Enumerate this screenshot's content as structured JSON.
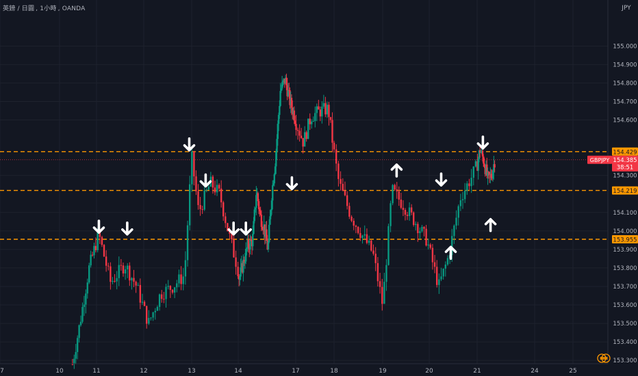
{
  "header": {
    "symbol_name": "英鎊 / 日圓",
    "interval": "1小時",
    "broker": "OANDA"
  },
  "chart_data": {
    "type": "candlestick",
    "symbol": "GBPJPY",
    "currency": "JPY",
    "y_ticks": [
      "155.000",
      "154.900",
      "154.800",
      "154.700",
      "154.600",
      "154.429",
      "154.385",
      "154.300",
      "154.219",
      "154.100",
      "154.000",
      "153.955",
      "153.900",
      "153.800",
      "153.700",
      "153.600",
      "153.500",
      "153.400",
      "153.300"
    ],
    "ylim": [
      153.26,
      155.04
    ],
    "x_ticks": [
      {
        "label": "7",
        "t": 7.0
      },
      {
        "label": "10",
        "t": 10.0
      },
      {
        "label": "11",
        "t": 11.0
      },
      {
        "label": "12",
        "t": 12.0
      },
      {
        "label": "13",
        "t": 13.0
      },
      {
        "label": "14",
        "t": 14.0
      },
      {
        "label": "17",
        "t": 17.0
      },
      {
        "label": "18",
        "t": 18.0
      },
      {
        "label": "19",
        "t": 19.0
      },
      {
        "label": "20",
        "t": 20.0
      },
      {
        "label": "21",
        "t": 21.0
      },
      {
        "label": "24",
        "t": 24.0
      },
      {
        "label": "25",
        "t": 25.0
      }
    ],
    "horizontal_levels": [
      {
        "value": 154.429,
        "label": "154.429",
        "color": "#ff9800"
      },
      {
        "value": 154.219,
        "label": "154.219",
        "color": "#ff9800"
      },
      {
        "value": 153.955,
        "label": "153.955",
        "color": "#ff9800"
      }
    ],
    "current_price": {
      "value": 154.385,
      "symbol_label": "GBPJPY",
      "price_label": "154.385",
      "countdown": "38:51",
      "color": "#f23645"
    },
    "arrows": [
      {
        "dir": "down",
        "t": 11.05,
        "price": 154.025
      },
      {
        "dir": "down",
        "t": 11.65,
        "price": 154.015
      },
      {
        "dir": "down",
        "t": 12.95,
        "price": 154.47
      },
      {
        "dir": "down",
        "t": 13.3,
        "price": 154.275
      },
      {
        "dir": "down",
        "t": 13.9,
        "price": 154.015
      },
      {
        "dir": "down",
        "t": 14.4,
        "price": 154.015
      },
      {
        "dir": "down",
        "t": 16.8,
        "price": 154.26
      },
      {
        "dir": "up",
        "t": 19.3,
        "price": 154.325
      },
      {
        "dir": "down",
        "t": 20.25,
        "price": 154.28
      },
      {
        "dir": "up",
        "t": 20.45,
        "price": 153.88
      },
      {
        "dir": "down",
        "t": 21.3,
        "price": 154.48
      },
      {
        "dir": "up",
        "t": 21.7,
        "price": 154.03
      }
    ],
    "path_anchors": [
      [
        10.35,
        153.28
      ],
      [
        10.55,
        153.5
      ],
      [
        10.8,
        153.8
      ],
      [
        11.05,
        153.98
      ],
      [
        11.3,
        153.72
      ],
      [
        11.6,
        153.82
      ],
      [
        11.85,
        153.7
      ],
      [
        12.1,
        153.5
      ],
      [
        12.35,
        153.66
      ],
      [
        12.6,
        153.7
      ],
      [
        12.85,
        153.76
      ],
      [
        13.0,
        154.4
      ],
      [
        13.15,
        154.1
      ],
      [
        13.4,
        154.26
      ],
      [
        13.6,
        154.2
      ],
      [
        13.8,
        153.98
      ],
      [
        14.05,
        153.74
      ],
      [
        14.25,
        153.82
      ],
      [
        14.5,
        153.92
      ],
      [
        14.75,
        153.95
      ],
      [
        14.95,
        154.22
      ],
      [
        15.15,
        154.08
      ],
      [
        15.35,
        154.02
      ],
      [
        15.55,
        153.9
      ],
      [
        15.75,
        154.2
      ],
      [
        15.95,
        154.4
      ],
      [
        16.2,
        154.76
      ],
      [
        16.45,
        154.82
      ],
      [
        16.7,
        154.7
      ],
      [
        16.95,
        154.62
      ],
      [
        17.2,
        154.48
      ],
      [
        17.4,
        154.62
      ],
      [
        17.65,
        154.65
      ],
      [
        17.85,
        154.66
      ],
      [
        18.1,
        154.26
      ],
      [
        18.35,
        154.08
      ],
      [
        18.55,
        153.99
      ],
      [
        18.8,
        153.88
      ],
      [
        19.0,
        153.6
      ],
      [
        19.2,
        154.22
      ],
      [
        19.45,
        154.14
      ],
      [
        19.7,
        154.05
      ],
      [
        19.95,
        153.95
      ],
      [
        20.2,
        153.7
      ],
      [
        20.4,
        153.86
      ],
      [
        20.65,
        154.18
      ],
      [
        20.9,
        154.3
      ],
      [
        21.15,
        154.44
      ],
      [
        21.35,
        154.38
      ],
      [
        21.55,
        154.28
      ],
      [
        21.75,
        154.3
      ],
      [
        21.95,
        154.4
      ]
    ]
  }
}
